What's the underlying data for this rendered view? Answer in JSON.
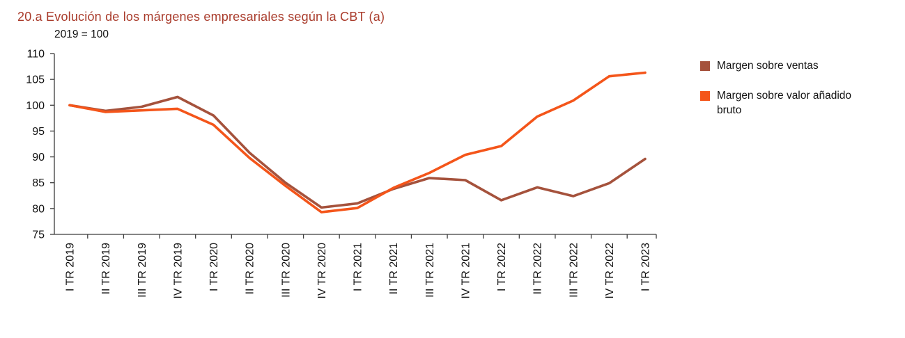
{
  "chart_data": {
    "type": "line",
    "title": "20.a  Evolución de los márgenes empresariales según la CBT (a)",
    "note": "2019 = 100",
    "title_color": "#a93b2b",
    "axis_color": "#3c3c3c",
    "grid": false,
    "legend_position": "right",
    "ylim": [
      75,
      110
    ],
    "ytick_step": 5,
    "categories": [
      "I TR 2019",
      "II TR 2019",
      "III TR 2019",
      "IV TR 2019",
      "I TR 2020",
      "II TR 2020",
      "III TR 2020",
      "IV TR 2020",
      "I TR 2021",
      "II TR 2021",
      "III TR 2021",
      "IV TR 2021",
      "I TR 2022",
      "II TR 2022",
      "III TR 2022",
      "IV TR 2022",
      "I TR 2023"
    ],
    "series": [
      {
        "name": "Margen sobre ventas",
        "color": "#a5523c",
        "values": [
          100,
          98.9,
          99.7,
          101.6,
          98.0,
          90.8,
          85.0,
          80.2,
          81.0,
          83.8,
          85.9,
          85.5,
          81.6,
          84.1,
          82.4,
          84.9,
          89.6
        ]
      },
      {
        "name": "Margen sobre valor añadido bruto",
        "color": "#f4551a",
        "values": [
          100,
          98.7,
          99.0,
          99.3,
          96.2,
          89.8,
          84.4,
          79.3,
          80.1,
          84.0,
          86.9,
          90.4,
          92.1,
          97.8,
          100.9,
          105.6,
          106.3
        ]
      }
    ]
  }
}
